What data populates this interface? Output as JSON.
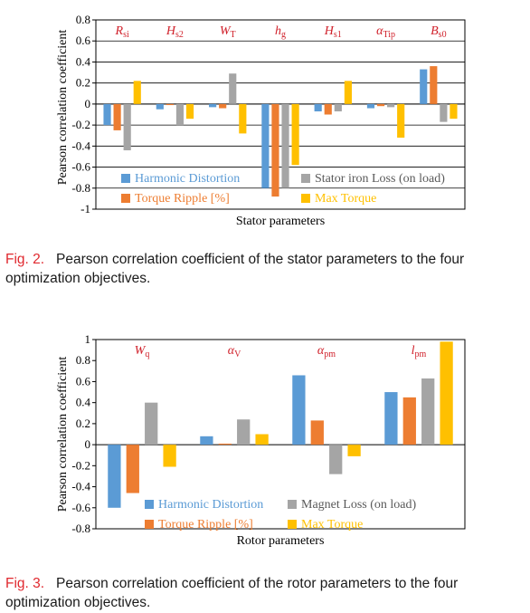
{
  "colors": {
    "harmonic": "#5b9bd5",
    "torque_ripple": "#ed7d31",
    "loss": "#a5a5a5",
    "max_torque": "#ffc000",
    "param_label": "#d0202a",
    "caption_fig": "#e0282e"
  },
  "figures": [
    {
      "caption_fig": "Fig. 2.",
      "caption_text": "Pearson correlation coefficient of the stator parameters to the four optimization objectives.",
      "chart_data": {
        "type": "bar",
        "ylabel": "Pearson correlation coefficient",
        "xlabel": "Stator parameters",
        "ylim": [
          -1,
          0.8
        ],
        "yticks": [
          -1,
          -0.8,
          -0.6,
          -0.4,
          -0.2,
          0,
          0.2,
          0.4,
          0.6,
          0.8
        ],
        "ytick_labels": [
          "-1",
          "-0.8",
          "-0.6",
          "-0.4",
          "-0.2",
          "0",
          "0.2",
          "0.4",
          "0.6",
          "0.8"
        ],
        "grid": "horizontal",
        "categories": [
          {
            "main": "R",
            "sub": "si"
          },
          {
            "main": "H",
            "sub": "s2"
          },
          {
            "main": "W",
            "sub": "T"
          },
          {
            "main": "h",
            "sub": "g"
          },
          {
            "main": "H",
            "sub": "s1"
          },
          {
            "main": "α",
            "sub": "Tip"
          },
          {
            "main": "B",
            "sub": "s0"
          }
        ],
        "series": [
          {
            "name": "Harmonic Distortion",
            "color_key": "harmonic",
            "values": [
              -0.2,
              -0.05,
              -0.03,
              -0.8,
              -0.07,
              -0.04,
              0.33
            ]
          },
          {
            "name": "Torque Ripple [%]",
            "color_key": "torque_ripple",
            "values": [
              -0.25,
              -0.01,
              -0.04,
              -0.88,
              -0.1,
              -0.02,
              0.36
            ]
          },
          {
            "name": "Stator iron Loss (on load)",
            "color_key": "loss",
            "values": [
              -0.44,
              -0.2,
              0.29,
              -0.8,
              -0.07,
              -0.03,
              -0.17
            ]
          },
          {
            "name": "Max  Torque",
            "color_key": "max_torque",
            "values": [
              0.22,
              -0.14,
              -0.28,
              -0.58,
              0.22,
              -0.32,
              -0.14
            ]
          }
        ],
        "legend_position": "bottom-inside"
      }
    },
    {
      "caption_fig": "Fig. 3.",
      "caption_text": "Pearson correlation coefficient of the rotor parameters to the four optimization objectives.",
      "chart_data": {
        "type": "bar",
        "ylabel": "Pearson correlation coefficient",
        "xlabel": "Rotor parameters",
        "ylim": [
          -0.8,
          1
        ],
        "yticks": [
          -0.8,
          -0.6,
          -0.4,
          -0.2,
          0,
          0.2,
          0.4,
          0.6,
          0.8,
          1
        ],
        "ytick_labels": [
          "-0.8",
          "-0.6",
          "-0.4",
          "-0.2",
          "0",
          "0.2",
          "0.4",
          "0.6",
          "0.8",
          "1"
        ],
        "grid": "none",
        "categories": [
          {
            "main": "W",
            "sub": "q"
          },
          {
            "main": "α",
            "sub": "V"
          },
          {
            "main": "α",
            "sub": "pm"
          },
          {
            "main": "l",
            "sub": "pm"
          }
        ],
        "series": [
          {
            "name": "Harmonic Distortion",
            "color_key": "harmonic",
            "values": [
              -0.6,
              0.08,
              0.66,
              0.5
            ]
          },
          {
            "name": "Torque Ripple [%]",
            "color_key": "torque_ripple",
            "values": [
              -0.46,
              0.01,
              0.23,
              0.45
            ]
          },
          {
            "name": "Magnet Loss (on load)",
            "color_key": "loss",
            "values": [
              0.4,
              0.24,
              -0.28,
              0.63
            ]
          },
          {
            "name": "Max  Torque",
            "color_key": "max_torque",
            "values": [
              -0.21,
              0.1,
              -0.11,
              0.98
            ]
          }
        ],
        "legend_position": "bottom-inside"
      }
    }
  ]
}
